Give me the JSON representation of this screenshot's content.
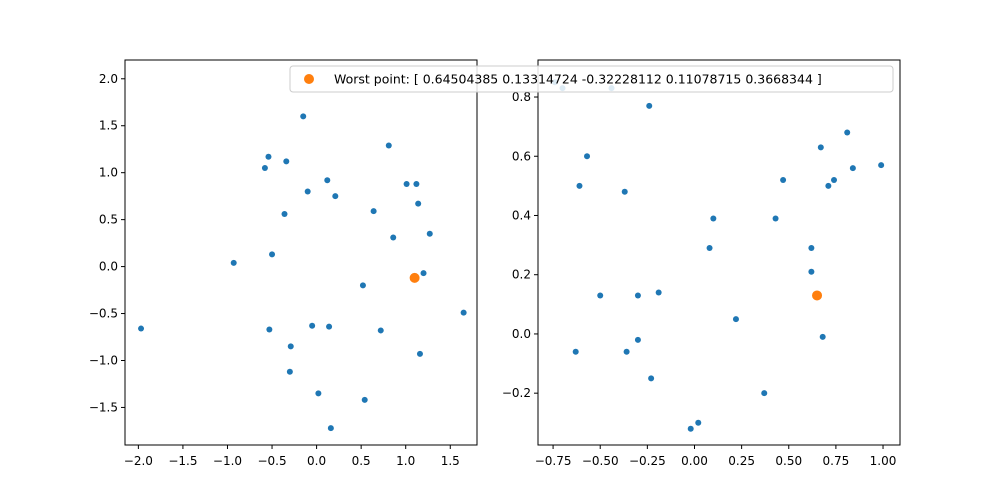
{
  "colors": {
    "points": "#1f77b4",
    "worst": "#ff7f0e",
    "axes": "#000000",
    "background": "#ffffff"
  },
  "legend": {
    "text": "Worst point: [ 0.64504385  0.13314724 -0.32228112  0.11078715  0.3668344 ]",
    "placement": "top-right of figure, overlapping both panels"
  },
  "chart_data": [
    {
      "type": "scatter",
      "xlim": [
        -2.15,
        1.8
      ],
      "ylim": [
        -1.9,
        2.2
      ],
      "xticks": [
        -2.0,
        -1.5,
        -1.0,
        -0.5,
        0.0,
        0.5,
        1.0,
        1.5
      ],
      "xtick_labels": [
        "−2.0",
        "−1.5",
        "−1.0",
        "−0.5",
        "0.0",
        "0.5",
        "1.0",
        "1.5"
      ],
      "yticks": [
        -1.5,
        -1.0,
        -0.5,
        0.0,
        0.5,
        1.0,
        1.5,
        2.0
      ],
      "ytick_labels": [
        "−1.5",
        "−1.0",
        "−0.5",
        "0.0",
        "0.5",
        "1.0",
        "1.5",
        "2.0"
      ],
      "grid": false,
      "points": [
        {
          "x": -1.97,
          "y": -0.66
        },
        {
          "x": -0.93,
          "y": 0.04
        },
        {
          "x": -0.58,
          "y": 1.05
        },
        {
          "x": -0.54,
          "y": 1.17
        },
        {
          "x": -0.53,
          "y": -0.67
        },
        {
          "x": -0.5,
          "y": 0.13
        },
        {
          "x": -0.34,
          "y": 1.12
        },
        {
          "x": -0.36,
          "y": 0.56
        },
        {
          "x": -0.29,
          "y": -0.85
        },
        {
          "x": -0.3,
          "y": -1.12
        },
        {
          "x": -0.15,
          "y": 1.6
        },
        {
          "x": -0.1,
          "y": 0.8
        },
        {
          "x": -0.05,
          "y": -0.63
        },
        {
          "x": 0.02,
          "y": -1.35
        },
        {
          "x": 0.12,
          "y": 0.92
        },
        {
          "x": 0.14,
          "y": -0.64
        },
        {
          "x": 0.16,
          "y": -1.72
        },
        {
          "x": 0.21,
          "y": 0.75
        },
        {
          "x": 0.52,
          "y": -0.2
        },
        {
          "x": 0.54,
          "y": -1.42
        },
        {
          "x": 0.64,
          "y": 0.59
        },
        {
          "x": 0.72,
          "y": -0.68
        },
        {
          "x": 0.81,
          "y": 1.29
        },
        {
          "x": 0.86,
          "y": 0.31
        },
        {
          "x": 1.01,
          "y": 0.88
        },
        {
          "x": 1.12,
          "y": 0.88
        },
        {
          "x": 1.14,
          "y": 0.67
        },
        {
          "x": 1.16,
          "y": -0.93
        },
        {
          "x": 1.2,
          "y": -0.07
        },
        {
          "x": 1.27,
          "y": 0.35
        },
        {
          "x": 1.65,
          "y": -0.49
        }
      ],
      "highlight": {
        "x": 1.1,
        "y": -0.12
      }
    },
    {
      "type": "scatter",
      "xlim": [
        -0.83,
        1.09
      ],
      "ylim": [
        -0.375,
        0.925
      ],
      "xticks": [
        -0.75,
        -0.5,
        -0.25,
        0.0,
        0.25,
        0.5,
        0.75,
        1.0
      ],
      "xtick_labels": [
        "−0.75",
        "−0.50",
        "−0.25",
        "0.00",
        "0.25",
        "0.50",
        "0.75",
        "1.00"
      ],
      "yticks": [
        -0.2,
        0.0,
        0.2,
        0.4,
        0.6,
        0.8
      ],
      "ytick_labels": [
        "−0.2",
        "0.0",
        "0.2",
        "0.4",
        "0.6",
        "0.8"
      ],
      "grid": false,
      "points": [
        {
          "x": -0.74,
          "y": 0.85
        },
        {
          "x": -0.7,
          "y": 0.83
        },
        {
          "x": -0.44,
          "y": 0.83
        },
        {
          "x": -0.24,
          "y": 0.77
        },
        {
          "x": -0.57,
          "y": 0.6
        },
        {
          "x": -0.61,
          "y": 0.5
        },
        {
          "x": -0.37,
          "y": 0.48
        },
        {
          "x": -0.5,
          "y": 0.13
        },
        {
          "x": -0.3,
          "y": 0.13
        },
        {
          "x": -0.19,
          "y": 0.14
        },
        {
          "x": -0.63,
          "y": -0.06
        },
        {
          "x": -0.36,
          "y": -0.06
        },
        {
          "x": -0.3,
          "y": -0.02
        },
        {
          "x": -0.23,
          "y": -0.15
        },
        {
          "x": -0.02,
          "y": -0.32
        },
        {
          "x": 0.02,
          "y": -0.3
        },
        {
          "x": 0.1,
          "y": 0.39
        },
        {
          "x": 0.08,
          "y": 0.29
        },
        {
          "x": 0.22,
          "y": 0.05
        },
        {
          "x": 0.37,
          "y": -0.2
        },
        {
          "x": 0.43,
          "y": 0.39
        },
        {
          "x": 0.47,
          "y": 0.52
        },
        {
          "x": 0.62,
          "y": 0.29
        },
        {
          "x": 0.62,
          "y": 0.21
        },
        {
          "x": 0.67,
          "y": 0.63
        },
        {
          "x": 0.68,
          "y": -0.01
        },
        {
          "x": 0.71,
          "y": 0.5
        },
        {
          "x": 0.74,
          "y": 0.52
        },
        {
          "x": 0.81,
          "y": 0.68
        },
        {
          "x": 0.84,
          "y": 0.56
        },
        {
          "x": 0.99,
          "y": 0.57
        }
      ],
      "highlight": {
        "x": 0.65,
        "y": 0.13
      }
    }
  ]
}
